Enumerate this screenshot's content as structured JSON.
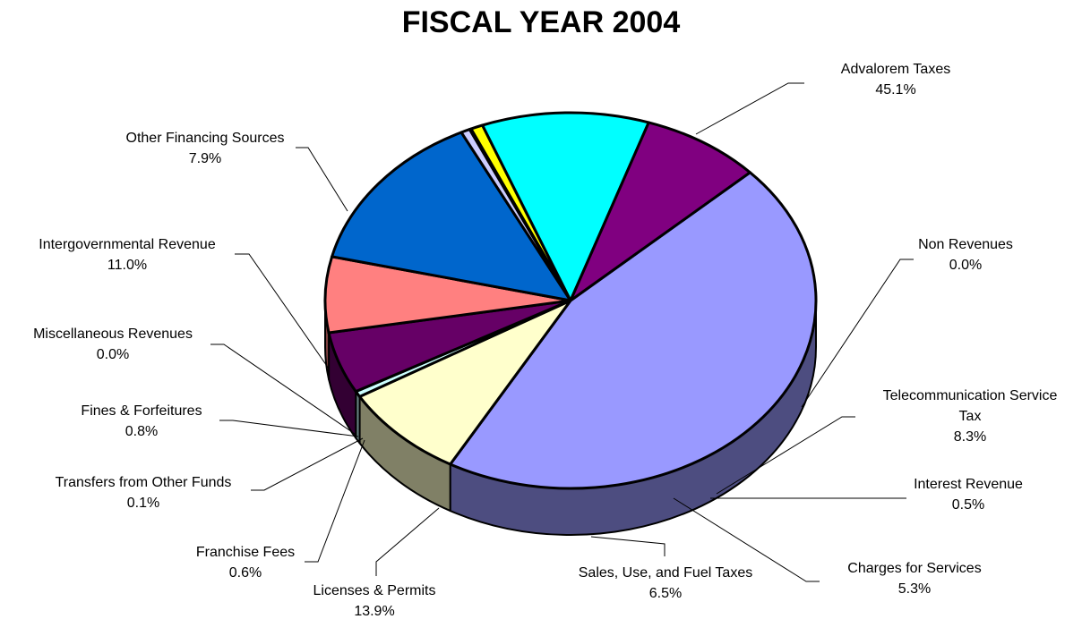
{
  "chart_data": {
    "type": "pie",
    "title": "FISCAL YEAR 2004",
    "slices": [
      {
        "label": "Advalorem Taxes",
        "value": 45.1,
        "pct": "45.1%",
        "color": "#9999FF"
      },
      {
        "label": "Non Revenues",
        "value": 0.0,
        "pct": "0.0%",
        "color": "#993366"
      },
      {
        "label": "Telecommunication Service Tax",
        "label_lines": [
          "Telecommunication Service",
          "Tax"
        ],
        "value": 8.3,
        "pct": "8.3%",
        "color": "#FFFFCC"
      },
      {
        "label": "Interest Revenue",
        "value": 0.5,
        "pct": "0.5%",
        "color": "#CCFFFF"
      },
      {
        "label": "Charges for Services",
        "value": 5.3,
        "pct": "5.3%",
        "color": "#660066"
      },
      {
        "label": "Sales, Use, and Fuel Taxes",
        "value": 6.5,
        "pct": "6.5%",
        "color": "#FF8080"
      },
      {
        "label": "Licenses & Permits",
        "value": 13.9,
        "pct": "13.9%",
        "color": "#0066CC"
      },
      {
        "label": "Franchise Fees",
        "value": 0.6,
        "pct": "0.6%",
        "color": "#CCCCFF"
      },
      {
        "label": "Transfers from Other Funds",
        "value": 0.1,
        "pct": "0.1%",
        "color": "#000080"
      },
      {
        "label": "Fines & Forfeitures",
        "value": 0.8,
        "pct": "0.8%",
        "color": "#FFFF00"
      },
      {
        "label": "Miscellaneous Revenues",
        "value": 0.0,
        "pct": "0.0%",
        "color": "#FF00FF"
      },
      {
        "label": "Intergovernmental Revenue",
        "value": 11.0,
        "pct": "11.0%",
        "color": "#00FFFF"
      },
      {
        "label": "Other Financing Sources",
        "value": 7.9,
        "pct": "7.9%",
        "color": "#800080"
      }
    ]
  }
}
